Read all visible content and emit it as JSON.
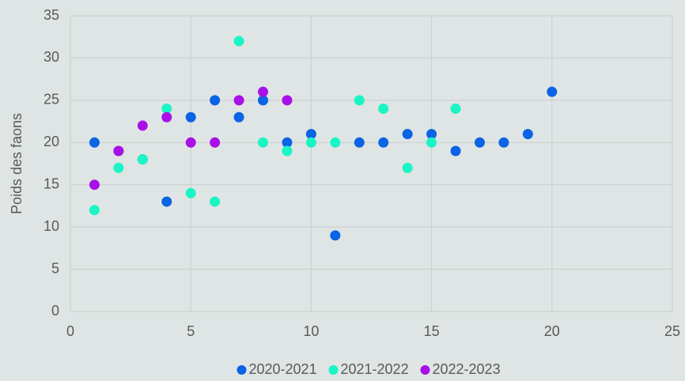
{
  "chart_data": {
    "type": "scatter",
    "y_label": "Poids des faons",
    "xlim": [
      0,
      25
    ],
    "xticks": [
      0,
      5,
      10,
      15,
      20,
      25
    ],
    "ylim": [
      0,
      35
    ],
    "yticks": [
      0,
      5,
      10,
      15,
      20,
      25,
      30,
      35
    ],
    "grid": true,
    "legend": "bottom",
    "series": [
      {
        "name": "2020-2021",
        "color": "#0b63e5",
        "x": [
          1,
          2,
          3,
          4,
          5,
          6,
          7,
          8,
          9,
          10,
          11,
          12,
          13,
          14,
          15,
          16,
          17,
          18,
          19,
          20
        ],
        "values": [
          20,
          19,
          18,
          13,
          23,
          25,
          23,
          25,
          20,
          21,
          9,
          20,
          20,
          21,
          21,
          19,
          20,
          20,
          21,
          26
        ]
      },
      {
        "name": "2021-2022",
        "color": "#19f5c4",
        "x": [
          1,
          2,
          3,
          4,
          5,
          6,
          7,
          8,
          9,
          10,
          11,
          12,
          13,
          14,
          15,
          16
        ],
        "values": [
          12,
          17,
          18,
          24,
          14,
          13,
          32,
          20,
          19,
          20,
          20,
          25,
          24,
          17,
          20,
          24
        ]
      },
      {
        "name": "2022-2023",
        "color": "#a910e8",
        "x": [
          1,
          2,
          3,
          4,
          5,
          6,
          7,
          8,
          9
        ],
        "values": [
          15,
          19,
          22,
          23,
          20,
          20,
          25,
          26,
          25
        ]
      }
    ]
  }
}
